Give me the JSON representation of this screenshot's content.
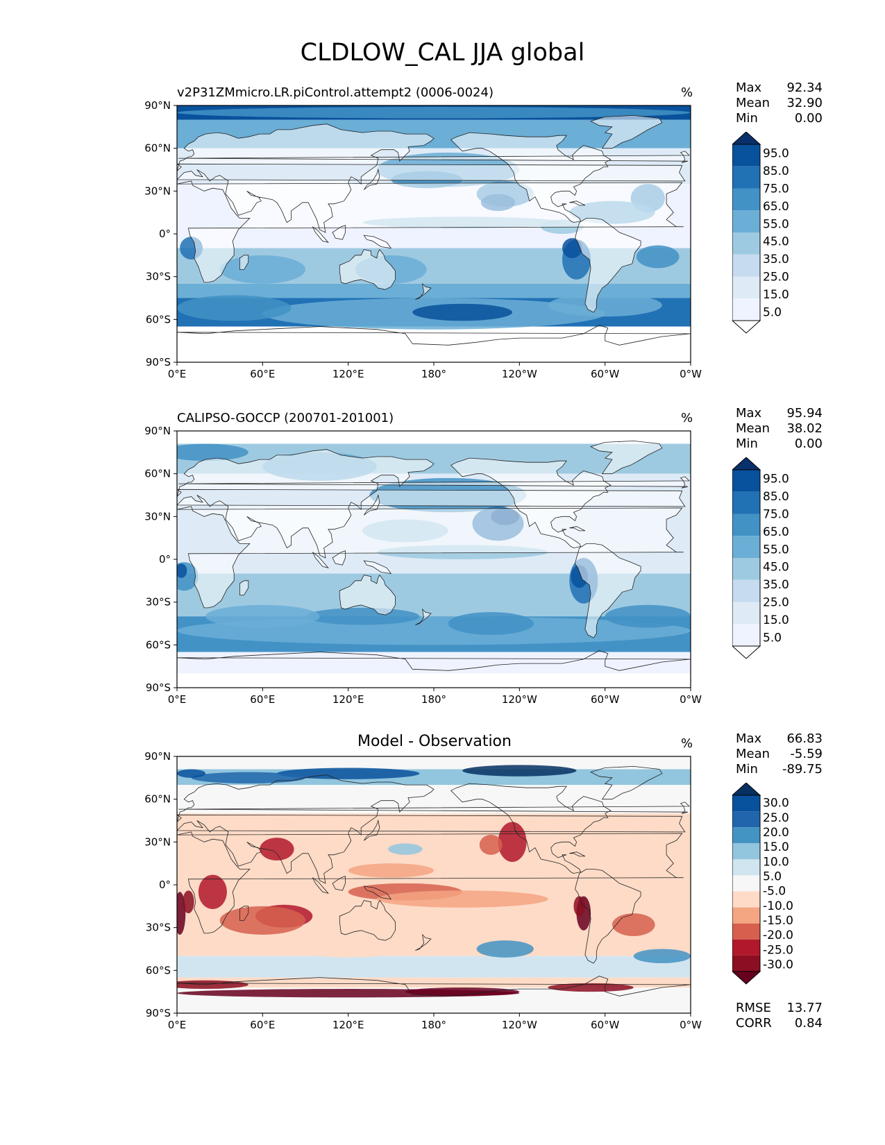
{
  "figure_title": "CLDLOW_CAL JJA global",
  "panels": [
    {
      "id": "model",
      "title": "v2P31ZMmicro.LR.piControl.attempt2 (0006-0024)",
      "units": "%",
      "stats": {
        "max_label": "Max",
        "max": "92.34",
        "mean_label": "Mean",
        "mean": "32.90",
        "min_label": "Min",
        "min": "0.00"
      },
      "colorbar_labels": [
        "95.0",
        "85.0",
        "75.0",
        "65.0",
        "55.0",
        "45.0",
        "35.0",
        "25.0",
        "15.0",
        "5.0"
      ],
      "colorbar_colors": [
        "#08306b",
        "#08519c",
        "#2171b5",
        "#4292c6",
        "#6baed6",
        "#9ecae1",
        "#c6dbef",
        "#deebf7",
        "#eff3ff",
        "#ffffff"
      ]
    },
    {
      "id": "obs",
      "title": "CALIPSO-GOCCP (200701-201001)",
      "units": "%",
      "stats": {
        "max_label": "Max",
        "max": "95.94",
        "mean_label": "Mean",
        "mean": "38.02",
        "min_label": "Min",
        "min": "0.00"
      },
      "colorbar_labels": [
        "95.0",
        "85.0",
        "75.0",
        "65.0",
        "55.0",
        "45.0",
        "35.0",
        "25.0",
        "15.0",
        "5.0"
      ],
      "colorbar_colors": [
        "#08306b",
        "#08519c",
        "#2171b5",
        "#4292c6",
        "#6baed6",
        "#9ecae1",
        "#c6dbef",
        "#deebf7",
        "#eff3ff",
        "#ffffff"
      ]
    },
    {
      "id": "diff",
      "title": "Model - Observation",
      "units": "%",
      "stats": {
        "max_label": "Max",
        "max": "66.83",
        "mean_label": "Mean",
        "mean": "-5.59",
        "min_label": "Min",
        "min": "-89.75"
      },
      "colorbar_labels": [
        "30.0",
        "25.0",
        "20.0",
        "15.0",
        "10.0",
        "5.0",
        "-5.0",
        "-10.0",
        "-15.0",
        "-20.0",
        "-25.0",
        "-30.0"
      ],
      "colorbar_colors": [
        "#053061",
        "#08519c",
        "#2166ac",
        "#4393c3",
        "#92c5de",
        "#d1e5f0",
        "#f7f7f7",
        "#fddbc7",
        "#f4a582",
        "#d6604d",
        "#b2182b",
        "#8b0e22",
        "#67001f"
      ],
      "metrics": {
        "rmse_label": "RMSE",
        "rmse": "13.77",
        "corr_label": "CORR",
        "corr": "0.84"
      }
    }
  ],
  "lat_ticks": [
    "90°N",
    "60°N",
    "30°N",
    "0°",
    "30°S",
    "60°S",
    "90°S"
  ],
  "lon_ticks": [
    "0°E",
    "60°E",
    "120°E",
    "180°",
    "120°W",
    "60°W",
    "0°W"
  ]
}
